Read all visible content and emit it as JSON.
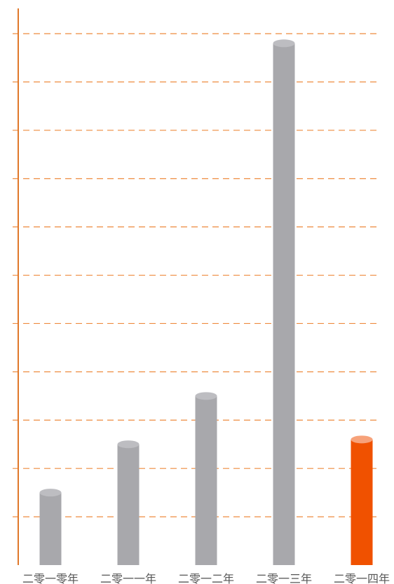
{
  "chart_data": {
    "type": "bar",
    "categories": [
      "二零一零年",
      "二零一一年",
      "二零一二年",
      "二零一三年",
      "二零一四年"
    ],
    "values": [
      1.5,
      2.5,
      3.5,
      10.8,
      2.6
    ],
    "ylim": [
      0,
      11
    ],
    "grid": true,
    "highlight_index": 4
  },
  "colors": {
    "axis": "#E0782A",
    "grid": "#EE8B3F",
    "bar": "#A8A8AC",
    "bar_top": "#BDBDC1",
    "highlight": "#F05100",
    "highlight_top": "#F7A27A"
  }
}
